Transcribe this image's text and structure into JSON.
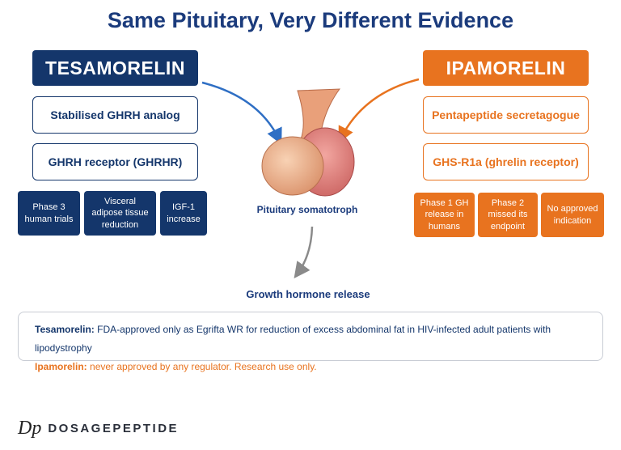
{
  "header": {
    "title": "Same Pituitary, Very Different Evidence"
  },
  "left": {
    "name": "TESAMORELIN",
    "boxes": [
      "Stabilised GHRH analog",
      "GHRH receptor (GHRHR)"
    ],
    "tiles": [
      "Phase 3 human trials",
      "Visceral adipose tissue reduction",
      "IGF-1 increase"
    ]
  },
  "right": {
    "name": "IPAMORELIN",
    "boxes": [
      "Pentapeptide secretagogue",
      "GHS-R1a (ghrelin receptor)"
    ],
    "tiles": [
      "Phase 1 GH release in humans",
      "Phase 2 missed its endpoint",
      "No approved indication"
    ]
  },
  "center": {
    "label": "Pituitary somatotroph",
    "output": "Growth hormone release"
  },
  "note": {
    "lines": [
      {
        "lead": "Tesamorelin:",
        "text": "FDA-approved only as Egrifta WR for reduction of excess abdominal fat in HIV-infected adult patients with lipodystrophy"
      },
      {
        "lead": "Ipamorelin:",
        "text": "never approved by any regulator. Research use only."
      }
    ]
  },
  "brand": {
    "logo": "Dp",
    "name": "DOSAGEPEPTIDE"
  }
}
